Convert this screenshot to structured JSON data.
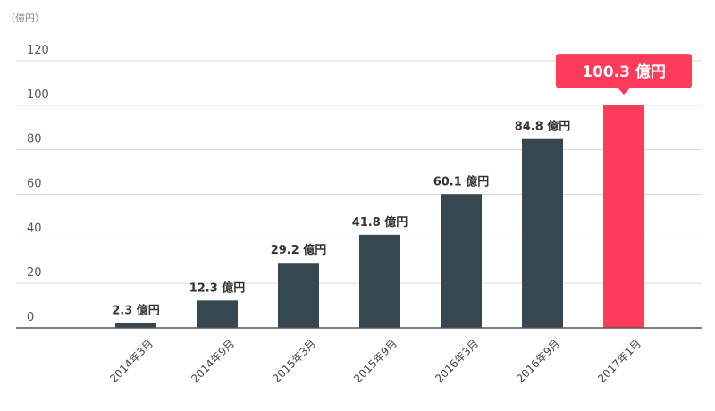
{
  "chart_data": {
    "type": "bar",
    "unit_label": "（億円）",
    "categories": [
      "2014年3月",
      "2014年9月",
      "2015年3月",
      "2015年9月",
      "2016年3月",
      "2016年9月",
      "2017年1月"
    ],
    "values": [
      2.3,
      12.3,
      29.2,
      41.8,
      60.1,
      84.8,
      100.3
    ],
    "data_labels": [
      "2.3 億円",
      "12.3 億円",
      "29.2 億円",
      "41.8 億円",
      "60.1 億円",
      "84.8 億円",
      "100.3 億円"
    ],
    "highlight_index": 6,
    "ylim": [
      0,
      120
    ],
    "yticks": [
      "0",
      "20",
      "40",
      "60",
      "80",
      "100",
      "120"
    ],
    "grid": true,
    "colors": {
      "bar": "#37474f",
      "highlight": "#ff3b5c",
      "grid": "#d9d9d9",
      "axis": "#555555"
    }
  }
}
